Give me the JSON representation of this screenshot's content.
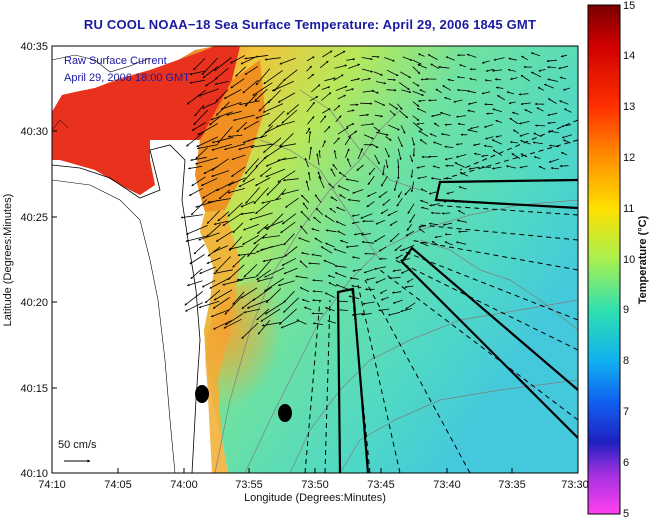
{
  "title": "RU COOL  NOAA−18  Sea Surface Temperature:  April 29, 2006 1845 GMT",
  "overlay": {
    "line1": "Raw Surface Current",
    "line2": "April 29, 2006 18:00 GMT",
    "scale_label": "50 cm/s"
  },
  "axes": {
    "xlabel": "Longitude (Degrees:Minutes)",
    "ylabel": "Latitude (Degrees:Minutes)",
    "xticks": [
      "74:10",
      "74:05",
      "74:00",
      "73:55",
      "73:50",
      "73:45",
      "73:40",
      "73:35",
      "73:30"
    ],
    "yticks": [
      "40:35",
      "40:30",
      "40:25",
      "40:20",
      "40:15",
      "40:10"
    ]
  },
  "colorbar": {
    "label": "Temperature (°C)",
    "ticks": [
      "15",
      "14",
      "13",
      "12",
      "11",
      "10",
      "9",
      "8",
      "7",
      "6",
      "5"
    ],
    "min": 5,
    "max": 15
  },
  "colors": {
    "title": "#1a1aa0",
    "warm": "#e8321e",
    "cool": "#3fd6b0"
  }
}
